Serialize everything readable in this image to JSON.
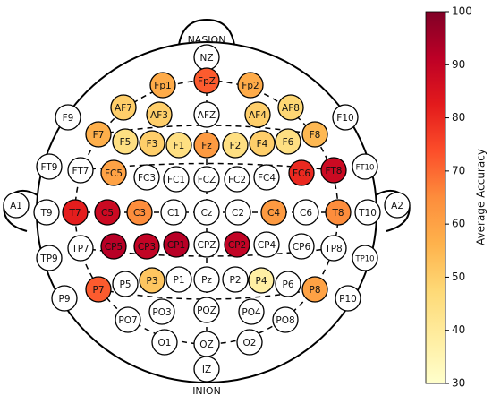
{
  "header": {
    "top": "NASION",
    "bottom": "INION"
  },
  "electrodes": [
    {
      "label": "NZ",
      "value": null
    },
    {
      "label": "Fp1",
      "value": 58
    },
    {
      "label": "FpZ",
      "value": 72
    },
    {
      "label": "Fp2",
      "value": 58
    },
    {
      "label": "AF7",
      "value": 50
    },
    {
      "label": "AF3",
      "value": 50
    },
    {
      "label": "AFZ",
      "value": null
    },
    {
      "label": "AF4",
      "value": 50
    },
    {
      "label": "AF8",
      "value": 48
    },
    {
      "label": "F7",
      "value": 57
    },
    {
      "label": "F5",
      "value": 45
    },
    {
      "label": "F3",
      "value": 50
    },
    {
      "label": "F1",
      "value": 45
    },
    {
      "label": "Fz",
      "value": 62
    },
    {
      "label": "F2",
      "value": 45
    },
    {
      "label": "F4",
      "value": 50
    },
    {
      "label": "F6",
      "value": 45
    },
    {
      "label": "F8",
      "value": 55
    },
    {
      "label": "F9",
      "value": null
    },
    {
      "label": "F10",
      "value": null
    },
    {
      "label": "FT9",
      "value": null
    },
    {
      "label": "FT7",
      "value": null
    },
    {
      "label": "FC5",
      "value": 60
    },
    {
      "label": "FC3",
      "value": null
    },
    {
      "label": "FC1",
      "value": null
    },
    {
      "label": "FCZ",
      "value": null
    },
    {
      "label": "FC2",
      "value": null
    },
    {
      "label": "FC4",
      "value": null
    },
    {
      "label": "FC6",
      "value": 80
    },
    {
      "label": "FT8",
      "value": 88
    },
    {
      "label": "FT10",
      "value": null
    },
    {
      "label": "A1",
      "value": null
    },
    {
      "label": "T9",
      "value": null
    },
    {
      "label": "T7",
      "value": 82
    },
    {
      "label": "C5",
      "value": 88
    },
    {
      "label": "C3",
      "value": 65
    },
    {
      "label": "C1",
      "value": null
    },
    {
      "label": "Cz",
      "value": null
    },
    {
      "label": "C2",
      "value": null
    },
    {
      "label": "C4",
      "value": 62
    },
    {
      "label": "C6",
      "value": null
    },
    {
      "label": "T8",
      "value": 65
    },
    {
      "label": "T10",
      "value": null
    },
    {
      "label": "A2",
      "value": null
    },
    {
      "label": "TP9",
      "value": null
    },
    {
      "label": "TP7",
      "value": null
    },
    {
      "label": "CP5",
      "value": 92
    },
    {
      "label": "CP3",
      "value": 90
    },
    {
      "label": "CP1",
      "value": 92
    },
    {
      "label": "CPZ",
      "value": null
    },
    {
      "label": "CP2",
      "value": 90
    },
    {
      "label": "CP4",
      "value": null
    },
    {
      "label": "CP6",
      "value": null
    },
    {
      "label": "TP8",
      "value": null
    },
    {
      "label": "TP10",
      "value": null
    },
    {
      "label": "P9",
      "value": null
    },
    {
      "label": "P7",
      "value": 72
    },
    {
      "label": "P5",
      "value": null
    },
    {
      "label": "P3",
      "value": 52
    },
    {
      "label": "P1",
      "value": null
    },
    {
      "label": "Pz",
      "value": null
    },
    {
      "label": "P2",
      "value": null
    },
    {
      "label": "P4",
      "value": 38
    },
    {
      "label": "P6",
      "value": null
    },
    {
      "label": "P8",
      "value": 60
    },
    {
      "label": "P10",
      "value": null
    },
    {
      "label": "PO7",
      "value": null
    },
    {
      "label": "PO3",
      "value": null
    },
    {
      "label": "POZ",
      "value": null
    },
    {
      "label": "PO4",
      "value": null
    },
    {
      "label": "PO8",
      "value": null
    },
    {
      "label": "O1",
      "value": null
    },
    {
      "label": "OZ",
      "value": null
    },
    {
      "label": "O2",
      "value": null
    },
    {
      "label": "IZ",
      "value": null
    }
  ],
  "colorbar": {
    "label": "Average Accuracy",
    "lim": [
      30,
      100
    ],
    "ticks": [
      30,
      40,
      50,
      60,
      70,
      80,
      90,
      100
    ],
    "colors": [
      "#ffffcc",
      "#ffeda0",
      "#fed976",
      "#feb24c",
      "#fd8d3c",
      "#fc4e2a",
      "#e31a1c",
      "#bd0026",
      "#800026"
    ]
  }
}
